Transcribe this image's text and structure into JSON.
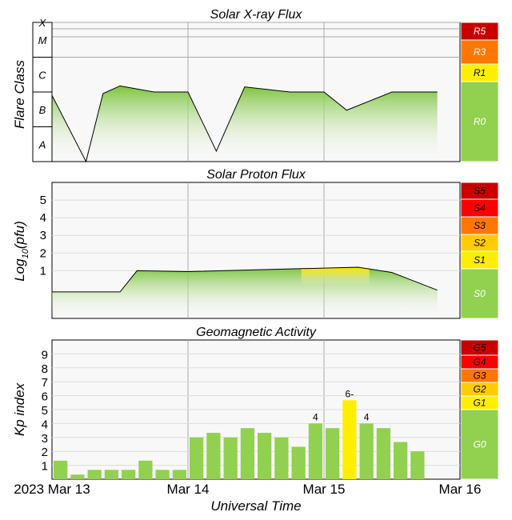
{
  "chart_data": [
    {
      "type": "area",
      "title": "Solar X-ray Flux",
      "ylabel": "Flare Class",
      "y_scale": "log",
      "ylim": [
        "A0",
        "X10"
      ],
      "classes": [
        "A",
        "B",
        "C",
        "M",
        "X"
      ],
      "x": [
        "2023-03-13T00:00Z",
        "2023-03-13T06:00Z",
        "2023-03-13T09:00Z",
        "2023-03-13T12:00Z",
        "2023-03-13T18:00Z",
        "2023-03-14T00:00Z",
        "2023-03-14T05:00Z",
        "2023-03-14T10:00Z",
        "2023-03-14T18:00Z",
        "2023-03-15T00:00Z",
        "2023-03-15T04:00Z",
        "2023-03-15T12:00Z",
        "2023-03-15T20:00Z"
      ],
      "flux_class": [
        "B8",
        "A1",
        "B9",
        "C1.5",
        "C1",
        "C1",
        "A2",
        "C1.4",
        "C1",
        "C1",
        "B3",
        "C1",
        "C1"
      ],
      "scale_labels": [
        "R5",
        "R3",
        "R1",
        "R0"
      ],
      "scale_colors": [
        "#c80000",
        "#ff7700",
        "#ffee00",
        "#92d050"
      ]
    },
    {
      "type": "area",
      "title": "Solar Proton Flux",
      "ylabel": "Log10(pfu)",
      "ylabel_sub": "10",
      "ylabel_main": "Log",
      "ylabel_tail": "(pfu)",
      "y_ticks": [
        "1",
        "2",
        "3",
        "4",
        "5"
      ],
      "ylim": [
        -1.7,
        6
      ],
      "x": [
        "2023-03-13T00:00Z",
        "2023-03-13T12:00Z",
        "2023-03-13T15:00Z",
        "2023-03-14T00:00Z",
        "2023-03-14T12:00Z",
        "2023-03-15T00:00Z",
        "2023-03-15T06:00Z",
        "2023-03-15T12:00Z",
        "2023-03-15T20:00Z"
      ],
      "log_pfu": [
        -0.2,
        -0.2,
        1.0,
        0.95,
        1.05,
        1.15,
        1.2,
        0.9,
        -0.1
      ],
      "scale_labels": [
        "S5",
        "S4",
        "S3",
        "S2",
        "S1",
        "S0"
      ],
      "scale_colors": [
        "#c80000",
        "#ff0000",
        "#ff7700",
        "#ffcc00",
        "#ffee00",
        "#92d050"
      ]
    },
    {
      "type": "bar",
      "title": "Geomagnetic Activity",
      "ylabel": "Kp index",
      "y_ticks": [
        "1",
        "2",
        "3",
        "4",
        "5",
        "6",
        "7",
        "8",
        "9"
      ],
      "ylim": [
        0,
        10
      ],
      "x_interval": "3h",
      "start": "2023-03-13T00:00Z",
      "kp": [
        1.33,
        0.33,
        0.67,
        0.67,
        0.67,
        1.33,
        0.67,
        0.67,
        3.0,
        3.33,
        3.0,
        3.67,
        3.33,
        3.0,
        2.33,
        4.0,
        3.67,
        5.67,
        4.0,
        3.67,
        2.67,
        2.0
      ],
      "bar_labels": [
        {
          "index": 15,
          "text": "4"
        },
        {
          "index": 17,
          "text": "6-"
        },
        {
          "index": 18,
          "text": "4"
        }
      ],
      "scale_labels": [
        "G5",
        "G4",
        "G3",
        "G2",
        "G1",
        "G0"
      ],
      "scale_colors": [
        "#c80000",
        "#ff0000",
        "#ff7700",
        "#ffcc00",
        "#ffee00",
        "#92d050"
      ]
    }
  ],
  "x_axis": {
    "labels": [
      "2023 Mar 13",
      "Mar 14",
      "Mar 15",
      "Mar 16"
    ],
    "title": "Universal Time"
  },
  "colors": {
    "green": "#92d050",
    "yellow": "#ffee00",
    "grid": "#aaaaaa",
    "plot_bg": "#f8f8f8"
  }
}
